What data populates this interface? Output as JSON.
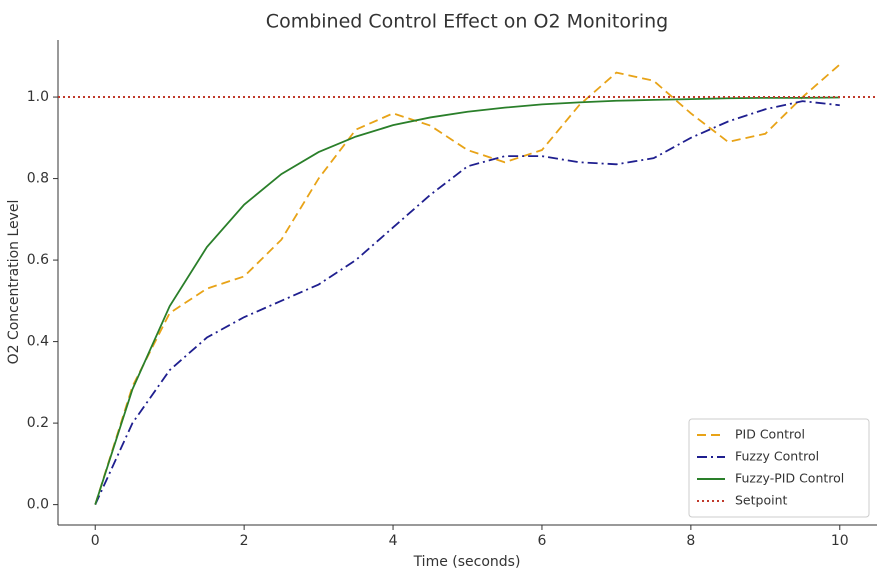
{
  "chart_data": {
    "type": "line",
    "title": "Combined Control Effect on O2 Monitoring",
    "x_label": "Time (seconds)",
    "y_label": "O2 Concentration Level",
    "x": [
      0,
      0.5,
      1,
      1.5,
      2,
      2.5,
      3,
      3.5,
      4,
      4.5,
      5,
      5.5,
      6,
      6.5,
      7,
      7.5,
      8,
      8.5,
      9,
      9.5,
      10
    ],
    "series": [
      {
        "name": "PID Control",
        "color": "#e8a317",
        "linestyle": "dashed",
        "values": [
          0,
          0.29,
          0.47,
          0.53,
          0.56,
          0.65,
          0.8,
          0.92,
          0.96,
          0.93,
          0.87,
          0.84,
          0.87,
          0.98,
          1.06,
          1.04,
          0.96,
          0.89,
          0.91,
          1.0,
          1.08
        ]
      },
      {
        "name": "Fuzzy Control",
        "color": "#1f1f8f",
        "linestyle": "dashdot",
        "values": [
          0,
          0.2,
          0.33,
          0.41,
          0.46,
          0.5,
          0.54,
          0.6,
          0.68,
          0.76,
          0.83,
          0.855,
          0.855,
          0.84,
          0.835,
          0.85,
          0.9,
          0.94,
          0.97,
          0.99,
          0.98
        ]
      },
      {
        "name": "Fuzzy-PID Control",
        "color": "#2a7f2a",
        "linestyle": "solid",
        "values": [
          0,
          0.283,
          0.487,
          0.632,
          0.736,
          0.811,
          0.865,
          0.903,
          0.931,
          0.95,
          0.964,
          0.974,
          0.982,
          0.987,
          0.991,
          0.993,
          0.995,
          0.997,
          0.998,
          0.998,
          0.999
        ]
      }
    ],
    "hlines": [
      {
        "name": "Setpoint",
        "value": 1.0,
        "color": "#c0392b",
        "linestyle": "dotted"
      }
    ],
    "xlim": [
      -0.5,
      10.5
    ],
    "ylim": [
      -0.05,
      1.14
    ],
    "xticks": [
      0,
      2,
      4,
      6,
      8,
      10
    ],
    "yticks": [
      {
        "value": 0,
        "label": "0.0"
      },
      0.2,
      0.4,
      0.6,
      0.8,
      {
        "value": 1,
        "label": "1.0"
      }
    ],
    "grid": false,
    "legend": "lower right"
  }
}
